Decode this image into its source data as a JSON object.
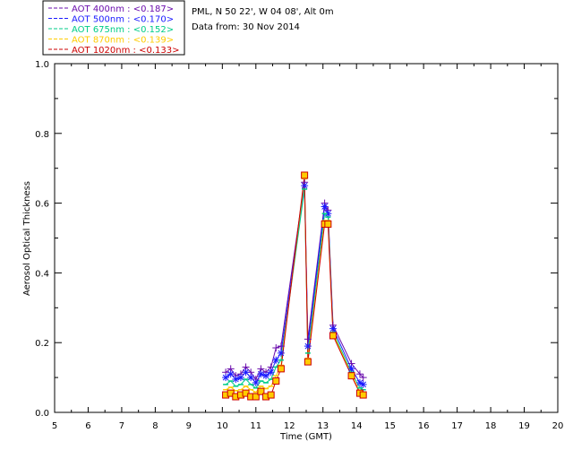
{
  "chart_data": {
    "type": "line",
    "site_info": "PML, N 50 22', W 04 08', Alt 0m",
    "date_info": "Data from: 30 Nov 2014",
    "xlabel": "Time (GMT)",
    "ylabel": "Aerosol Optical Thickness",
    "xlim": [
      5,
      20
    ],
    "ylim": [
      0,
      1.0
    ],
    "x_ticks": [
      "5",
      "6",
      "7",
      "8",
      "9",
      "10",
      "11",
      "12",
      "13",
      "14",
      "15",
      "16",
      "17",
      "18",
      "19",
      "20"
    ],
    "y_ticks": [
      "0.0",
      "0.2",
      "0.4",
      "0.6",
      "0.8",
      "1.0"
    ],
    "x": [
      10.1,
      10.25,
      10.4,
      10.55,
      10.7,
      10.85,
      11.0,
      11.15,
      11.3,
      11.45,
      11.6,
      11.75,
      12.45,
      12.55,
      13.05,
      13.15,
      13.3,
      13.85,
      14.1,
      14.2
    ],
    "series": [
      {
        "name": "AOT  400nm",
        "legend": "AOT  400nm : <0.187>",
        "color": "#6a0dad",
        "marker": "plus",
        "values": [
          0.115,
          0.125,
          0.105,
          0.11,
          0.13,
          0.115,
          0.095,
          0.125,
          0.115,
          0.13,
          0.185,
          0.19,
          0.66,
          0.21,
          0.6,
          0.58,
          0.25,
          0.14,
          0.11,
          0.1
        ]
      },
      {
        "name": "AOT  500nm",
        "legend": "AOT  500nm : <0.170>",
        "color": "#1a1aff",
        "marker": "star",
        "values": [
          0.1,
          0.11,
          0.095,
          0.1,
          0.115,
          0.1,
          0.085,
          0.11,
          0.105,
          0.115,
          0.15,
          0.17,
          0.65,
          0.19,
          0.59,
          0.57,
          0.24,
          0.125,
          0.085,
          0.08
        ]
      },
      {
        "name": "AOT  675nm",
        "legend": "AOT  675nm : <0.152>",
        "color": "#00cc88",
        "marker": "dash",
        "values": [
          0.08,
          0.09,
          0.075,
          0.08,
          0.095,
          0.08,
          0.07,
          0.09,
          0.085,
          0.095,
          0.13,
          0.15,
          0.64,
          0.17,
          0.57,
          0.56,
          0.23,
          0.115,
          0.07,
          0.065
        ]
      },
      {
        "name": "AOT  870nm",
        "legend": "AOT  870nm : <0.139>",
        "color": "#ffcc00",
        "marker": "dash",
        "values": [
          0.065,
          0.072,
          0.062,
          0.065,
          0.075,
          0.065,
          0.058,
          0.075,
          0.068,
          0.075,
          0.105,
          0.135,
          0.67,
          0.155,
          0.55,
          0.55,
          0.225,
          0.108,
          0.06,
          0.055
        ]
      },
      {
        "name": "AOT 1020nm",
        "legend": "AOT 1020nm : <0.133>",
        "color": "#cc0000",
        "marker": "square",
        "values": [
          0.05,
          0.055,
          0.045,
          0.05,
          0.055,
          0.045,
          0.045,
          0.06,
          0.045,
          0.05,
          0.09,
          0.125,
          0.68,
          0.145,
          0.54,
          0.54,
          0.22,
          0.105,
          0.055,
          0.05
        ]
      }
    ]
  }
}
